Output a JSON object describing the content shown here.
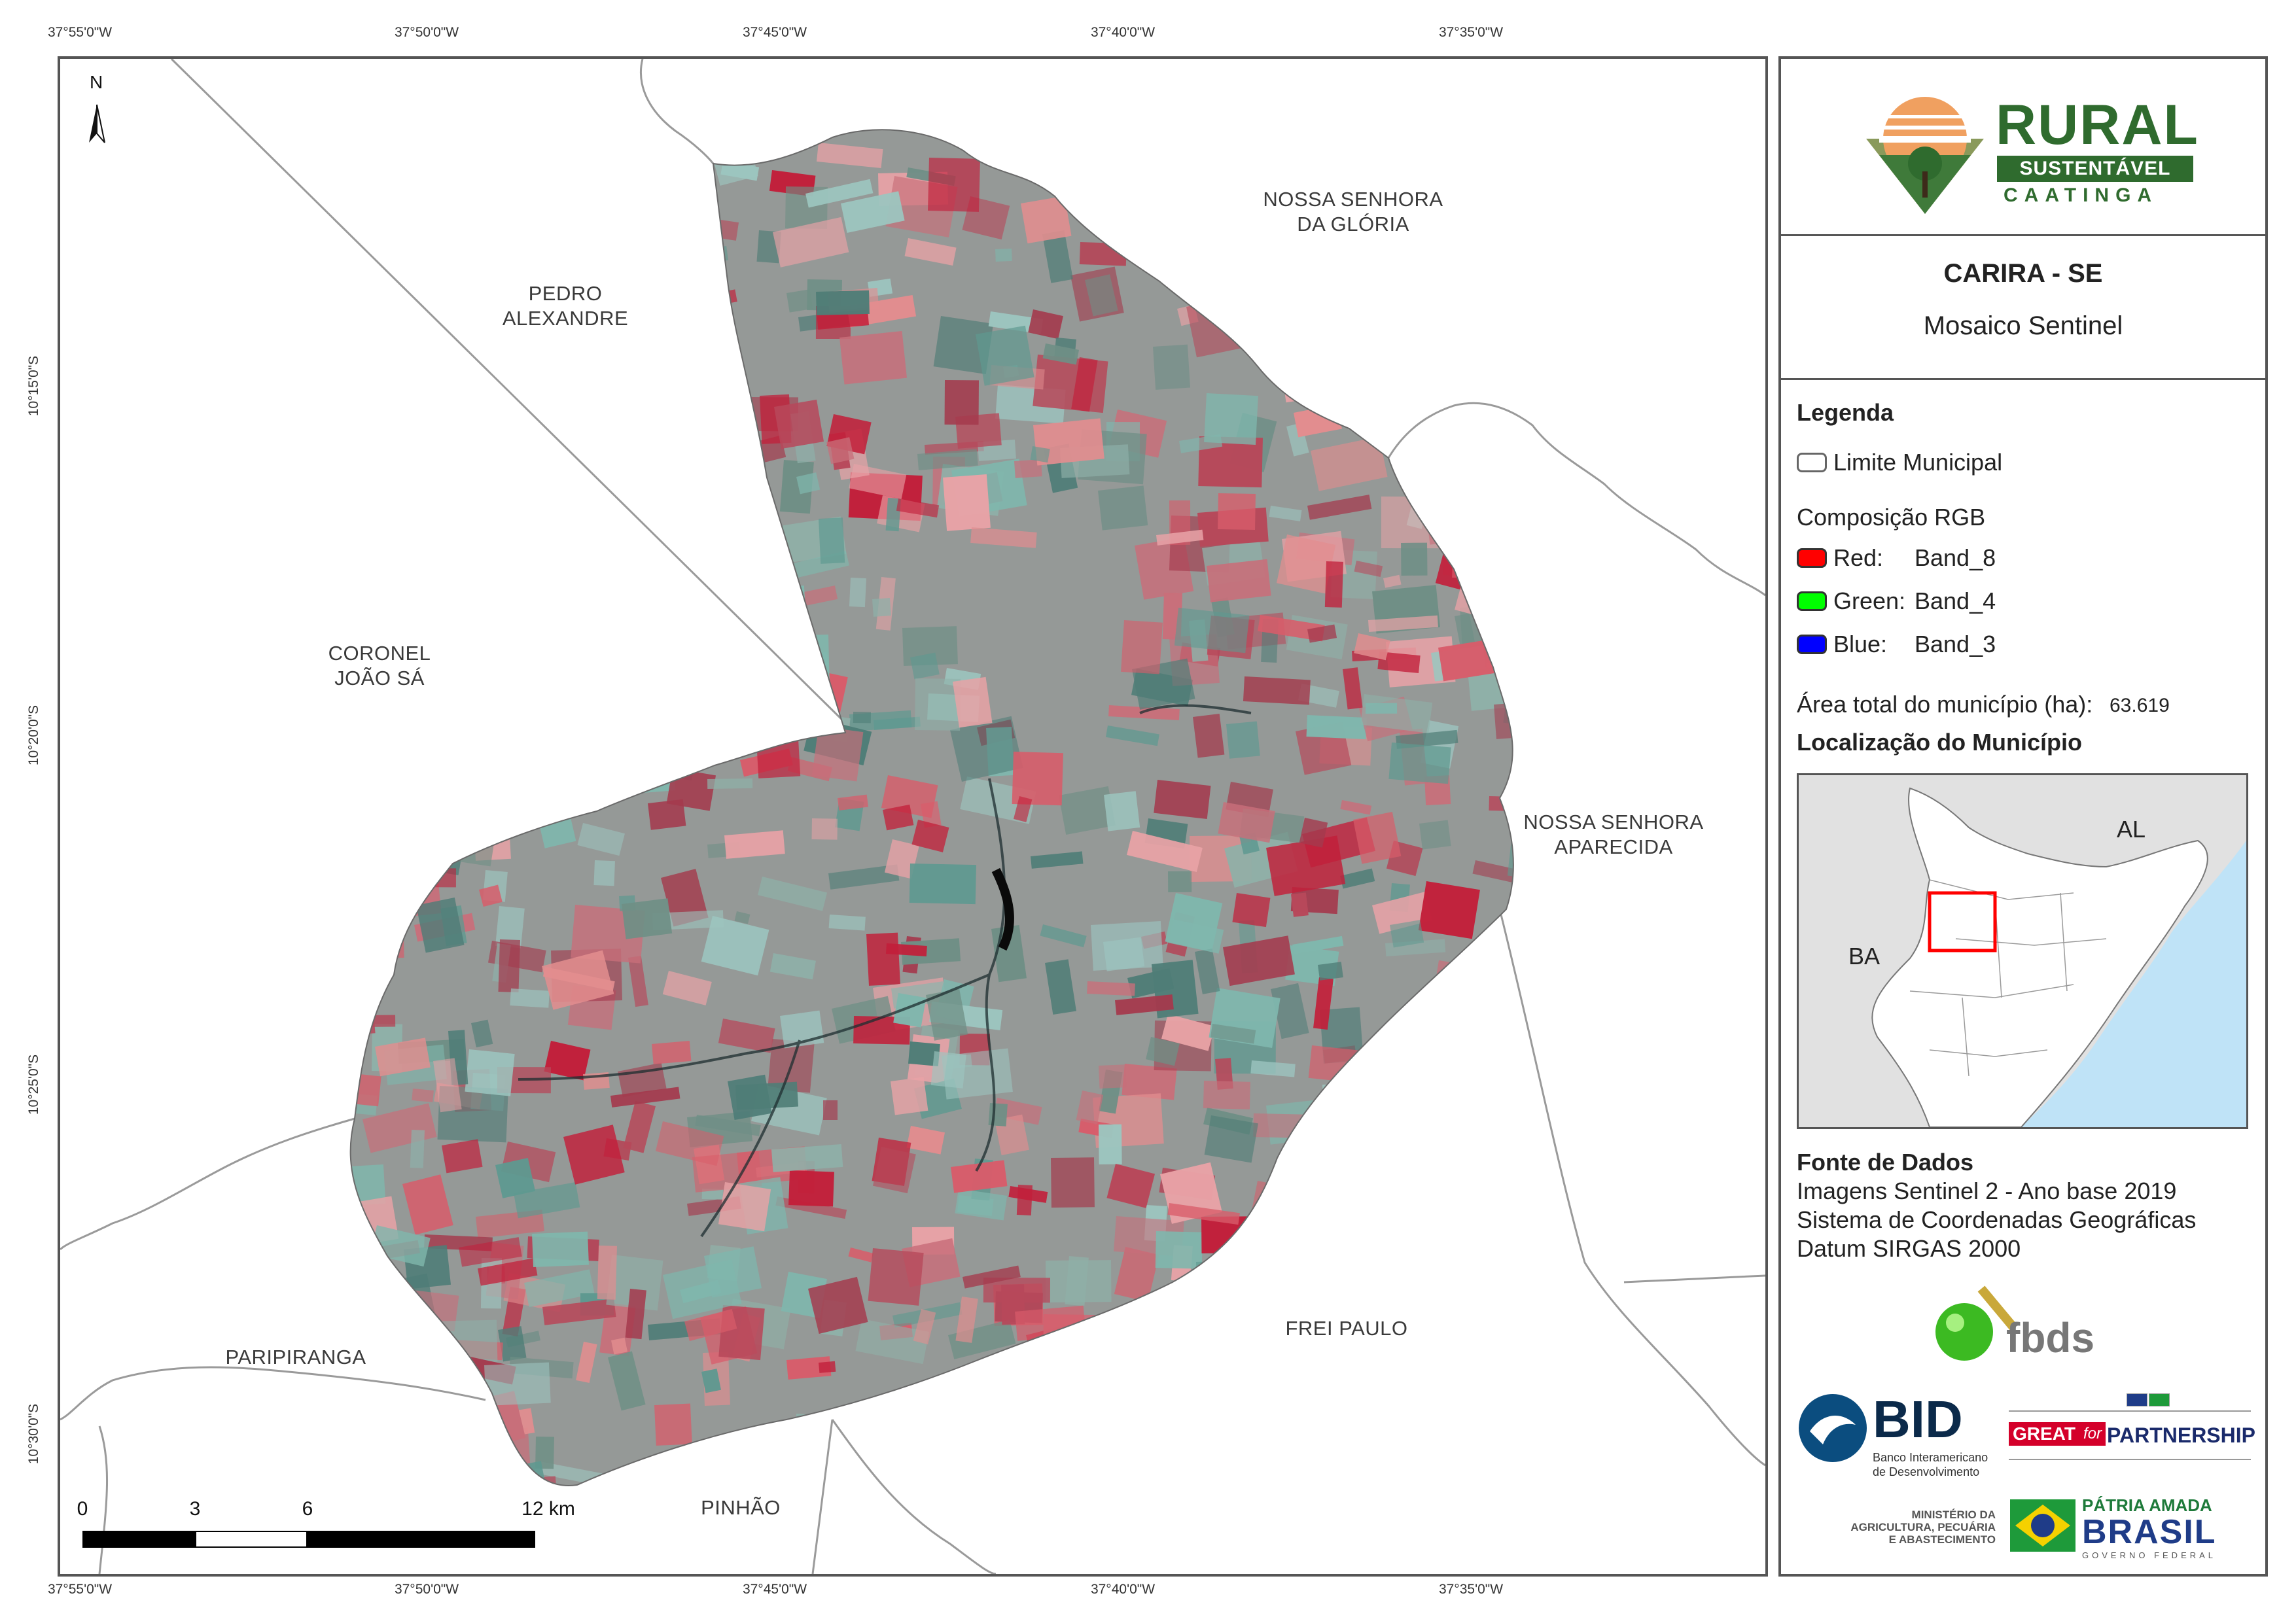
{
  "map": {
    "coordinates": {
      "top": [
        "37°55'0\"W",
        "37°50'0\"W",
        "37°45'0\"W",
        "37°40'0\"W",
        "37°35'0\"W"
      ],
      "bottom": [
        "37°55'0\"W",
        "37°50'0\"W",
        "37°45'0\"W",
        "37°40'0\"W",
        "37°35'0\"W"
      ],
      "left": [
        "10°15'0\"S",
        "10°20'0\"S",
        "10°25'0\"S",
        "10°30'0\"S"
      ]
    },
    "north_arrow": "N",
    "municipalities": {
      "pedro_alexandre": [
        "PEDRO",
        "ALEXANDRE"
      ],
      "nossa_senhora_gloria": [
        "NOSSA SENHORA",
        "DA GLÓRIA"
      ],
      "coronel_joao_sa": [
        "CORONEL",
        "JOÃO SÁ"
      ],
      "nossa_senhora_aparecida": [
        "NOSSA SENHORA",
        "APARECIDA"
      ],
      "frei_paulo": "FREI PAULO",
      "paripiranga": "PARIPIRANGA",
      "pinhao": "PINHÃO"
    },
    "scale_bar": {
      "ticks": [
        "0",
        "3",
        "6",
        "12 km"
      ]
    }
  },
  "panel": {
    "logo_rural": {
      "title": "RURAL",
      "subtitle": "SUSTENTÁVEL",
      "region": "CAATINGA"
    },
    "title": "CARIRA - SE",
    "subtitle": "Mosaico Sentinel",
    "legend": {
      "heading": "Legenda",
      "boundary": "Limite Municipal",
      "composition": "Composição RGB",
      "bands": [
        {
          "channel": "Red:",
          "band": "Band_8",
          "color": "#ff0000"
        },
        {
          "channel": "Green:",
          "band": "Band_4",
          "color": "#00ff00"
        },
        {
          "channel": "Blue:",
          "band": "Band_3",
          "color": "#0000ff"
        }
      ],
      "area_label": "Área total do município (ha):",
      "area_value": "63.619"
    },
    "location": {
      "heading": "Localização do Município",
      "labels": {
        "al": "AL",
        "ba": "BA"
      },
      "colors": {
        "land": "#ffffff",
        "outside": "#e1e1e1",
        "sea": "#bfe3f7",
        "highlight": "#ff0000"
      }
    },
    "sources": {
      "heading": "Fonte de Dados",
      "lines": [
        "Imagens Sentinel 2 - Ano base 2019",
        "Sistema de Coordenadas Geográficas",
        "Datum SIRGAS 2000"
      ]
    },
    "logos": {
      "fbds": "fbds",
      "bid": {
        "name": "BID",
        "caption1": "Banco Interamericano",
        "caption2": "de Desenvolvimento"
      },
      "great": {
        "word1": "GREAT",
        "word2": "for",
        "word3": "PARTNERSHIP"
      },
      "ministerio": [
        "MINISTÉRIO DA",
        "AGRICULTURA, PECUÁRIA",
        "E ABASTECIMENTO"
      ],
      "brasil": {
        "line1": "PÁTRIA AMADA",
        "line2": "BRASIL",
        "line3": "GOVERNO FEDERAL"
      }
    }
  }
}
